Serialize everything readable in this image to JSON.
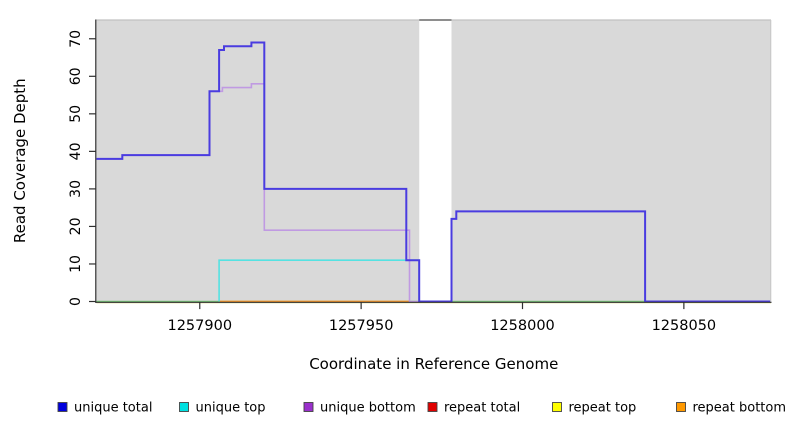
{
  "chart_data": {
    "type": "line",
    "subtype": "step-coverage-plot",
    "title": "",
    "xlabel": "Coordinate in Reference Genome",
    "ylabel": "Read Coverage Depth",
    "xlim": [
      1257868,
      1258077
    ],
    "ylim": [
      0,
      75
    ],
    "x_ticks": [
      1257900,
      1257950,
      1258000,
      1258050
    ],
    "y_ticks": [
      0,
      10,
      20,
      30,
      40,
      50,
      60,
      70
    ],
    "grid": false,
    "panel_background": "#d9d9d9",
    "page_background": "#ffffff",
    "gap_region": {
      "from": 1257968,
      "to": 1257978,
      "color": "#ffffff",
      "note": "white vertical band with no gray panel"
    },
    "series": [
      {
        "id": "repeat-total",
        "name": "repeat total",
        "color": "#e00000",
        "line_width": 1.2,
        "steps": [
          [
            1257868,
            0
          ],
          [
            1258077,
            0
          ]
        ]
      },
      {
        "id": "repeat-top",
        "name": "repeat top",
        "color": "#e9e9b4",
        "line_width": 1.2,
        "steps": [
          [
            1257868,
            0
          ],
          [
            1258077,
            0
          ]
        ]
      },
      {
        "id": "baseline-green",
        "name": "green baseline (unlabeled)",
        "color": "#7cc87c",
        "line_width": 1.4,
        "steps": [
          [
            1257868,
            0
          ],
          [
            1258077,
            0
          ]
        ]
      },
      {
        "id": "repeat-bottom",
        "name": "repeat bottom",
        "color": "#ff9a28",
        "line_width": 1.7,
        "steps": [
          [
            1257906,
            0
          ],
          [
            1257965,
            0
          ]
        ]
      },
      {
        "id": "unique-bottom",
        "name": "unique bottom",
        "color": "#c09ae2",
        "line_width": 1.6,
        "steps": [
          [
            1257868,
            38
          ],
          [
            1257876,
            39
          ],
          [
            1257903,
            56
          ],
          [
            1257907,
            57
          ],
          [
            1257916,
            58
          ],
          [
            1257920,
            19
          ],
          [
            1257965,
            0
          ],
          [
            1257968,
            0
          ]
        ]
      },
      {
        "id": "unique-top",
        "name": "unique top",
        "color": "#55e2e2",
        "line_width": 1.6,
        "steps": [
          [
            1257906,
            0
          ],
          [
            1257906,
            11
          ],
          [
            1257968,
            0
          ]
        ]
      },
      {
        "id": "unique-total",
        "name": "unique total",
        "color": "#4a3ce0",
        "line_width": 2,
        "steps": [
          [
            1257868,
            38
          ],
          [
            1257876,
            39
          ],
          [
            1257903,
            56
          ],
          [
            1257906,
            67
          ],
          [
            1257907.5,
            68
          ],
          [
            1257916,
            69
          ],
          [
            1257920,
            30
          ],
          [
            1257964,
            11
          ],
          [
            1257968,
            0
          ],
          [
            1257978,
            22
          ],
          [
            1257979.5,
            24
          ],
          [
            1258038,
            0
          ],
          [
            1258077,
            0
          ]
        ]
      }
    ],
    "legend": {
      "position": "bottom",
      "entries": [
        {
          "label": "unique total",
          "swatch_color": "#0000dd"
        },
        {
          "label": "unique top",
          "swatch_color": "#00e0e0"
        },
        {
          "label": "unique bottom",
          "swatch_color": "#9a30cc"
        },
        {
          "label": "repeat total",
          "swatch_color": "#e00000"
        },
        {
          "label": "repeat top",
          "swatch_color": "#ffff00"
        },
        {
          "label": "repeat bottom",
          "swatch_color": "#ff9900"
        }
      ]
    }
  }
}
